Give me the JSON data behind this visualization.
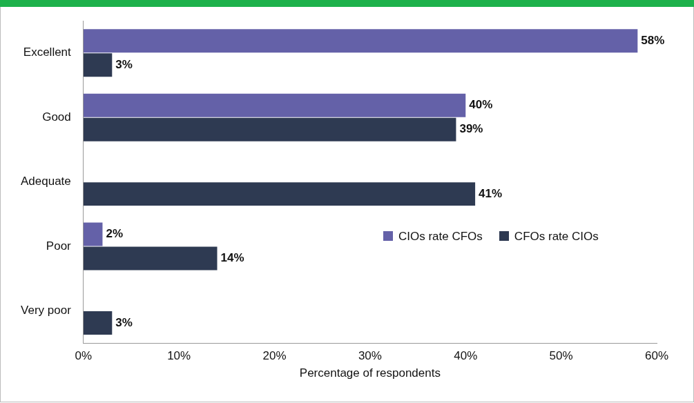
{
  "chart_data": {
    "type": "bar",
    "orientation": "horizontal",
    "xlabel": "Percentage of respondents",
    "categories": [
      "Excellent",
      "Good",
      "Adequate",
      "Poor",
      "Very poor"
    ],
    "series": [
      {
        "name": "CIOs rate CFOs",
        "color": "#6461a8",
        "values": [
          58,
          40,
          null,
          2,
          null
        ],
        "value_labels": [
          "58%",
          "40%",
          null,
          "2%",
          null
        ]
      },
      {
        "name": "CFOs rate CIOs",
        "color": "#2e3a52",
        "values": [
          3,
          39,
          41,
          14,
          3
        ],
        "value_labels": [
          "3%",
          "39%",
          "41%",
          "14%",
          "3%"
        ]
      }
    ],
    "xlim": [
      0,
      60
    ],
    "xticks": [
      {
        "value": 0,
        "label": "0%"
      },
      {
        "value": 10,
        "label": "10%"
      },
      {
        "value": 20,
        "label": "20%"
      },
      {
        "value": 30,
        "label": "30%"
      },
      {
        "value": 40,
        "label": "40%"
      },
      {
        "value": 50,
        "label": "50%"
      },
      {
        "value": 60,
        "label": "60%"
      }
    ],
    "grid": false,
    "legend": "right"
  }
}
